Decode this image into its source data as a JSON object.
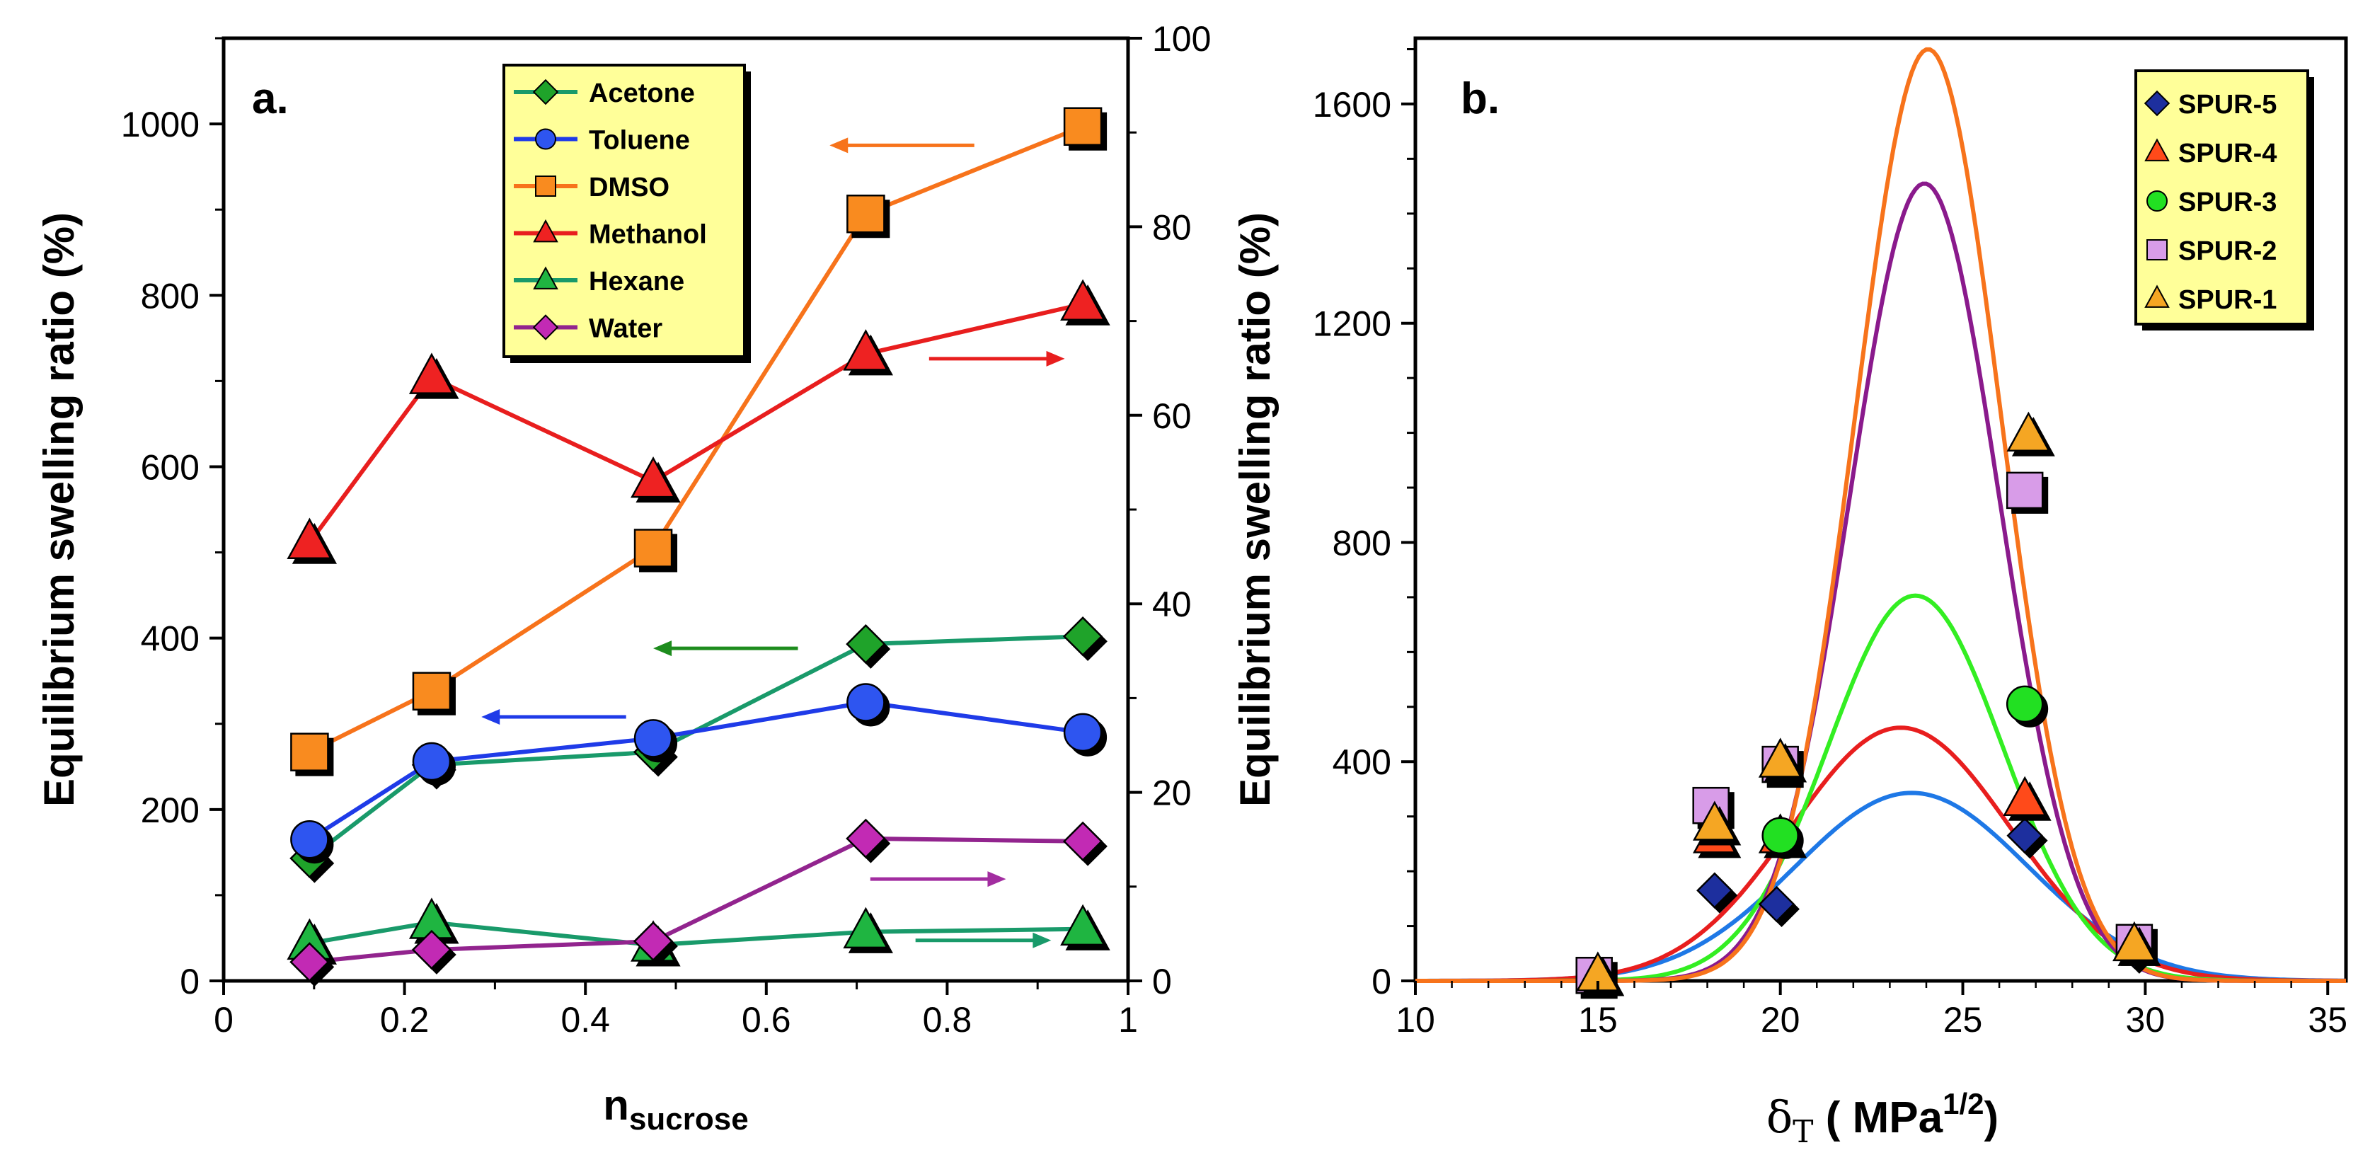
{
  "chart_data": [
    {
      "panel_label": "a.",
      "type": "line",
      "title": "",
      "xlabel_main": "n",
      "xlabel_sub": "sucrose",
      "ylabel": "Equilibrium swelling ratio (%)",
      "xlim": [
        0,
        1
      ],
      "ylim_left": [
        0,
        1100
      ],
      "ylim_right": [
        0,
        100
      ],
      "x_ticks": [
        "0",
        "0.2",
        "0.4",
        "0.6",
        "0.8",
        "1"
      ],
      "y_ticks_left": [
        "0",
        "200",
        "400",
        "600",
        "800",
        "1000"
      ],
      "y_ticks_right": [
        "0",
        "20",
        "40",
        "60",
        "80",
        "100"
      ],
      "x": [
        0.095,
        0.23,
        0.475,
        0.71,
        0.95
      ],
      "legend_position": "top-center",
      "series": [
        {
          "name": "Acetone",
          "axis": "left",
          "color": "#199a6a",
          "marker": "diamond",
          "marker_color": "#1fa32a",
          "values": [
            143,
            252,
            267,
            393,
            402
          ]
        },
        {
          "name": "Toluene",
          "axis": "left",
          "color": "#1f3be8",
          "marker": "circle",
          "marker_color": "#2e55f0",
          "values": [
            165,
            256,
            283,
            325,
            290
          ]
        },
        {
          "name": "DMSO",
          "axis": "left",
          "color": "#f7731b",
          "marker": "square",
          "marker_color": "#f98b1f",
          "values": [
            267,
            338,
            505,
            895,
            997
          ]
        },
        {
          "name": "Methanol",
          "axis": "right",
          "color": "#e81e1e",
          "marker": "triangle",
          "marker_color": "#ee2222",
          "values": [
            46.5,
            64,
            53,
            66.5,
            71.8
          ]
        },
        {
          "name": "Hexane",
          "axis": "right",
          "color": "#199a6a",
          "marker": "triangle",
          "marker_color": "#1fb541",
          "values": [
            4,
            6.2,
            3.8,
            5.2,
            5.5
          ]
        },
        {
          "name": "Water",
          "axis": "right",
          "color": "#92248e",
          "marker": "diamond",
          "marker_color": "#c22ab4",
          "values": [
            2,
            3.3,
            4.2,
            15.1,
            14.8
          ]
        }
      ],
      "arrows": [
        {
          "series": "DMSO",
          "direction": "left",
          "x_from": 0.83,
          "x_to": 0.67,
          "y": 975,
          "axis": "left",
          "color": "#f7731b"
        },
        {
          "series": "Methanol",
          "direction": "right",
          "x_from": 0.78,
          "x_to": 0.93,
          "y": 66,
          "axis": "right",
          "color": "#e81e1e"
        },
        {
          "series": "Acetone",
          "direction": "left",
          "x_from": 0.635,
          "x_to": 0.475,
          "y": 388,
          "axis": "left",
          "color": "#1d8c1d"
        },
        {
          "series": "Toluene",
          "direction": "left",
          "x_from": 0.445,
          "x_to": 0.285,
          "y": 308,
          "axis": "left",
          "color": "#1f3be8"
        },
        {
          "series": "Water",
          "direction": "right",
          "x_from": 0.715,
          "x_to": 0.865,
          "y": 10.8,
          "axis": "right",
          "color": "#a22da0"
        },
        {
          "series": "Hexane",
          "direction": "right",
          "x_from": 0.765,
          "x_to": 0.915,
          "y": 4.3,
          "axis": "right",
          "color": "#199a6a"
        }
      ]
    },
    {
      "panel_label": "b.",
      "type": "scatter",
      "title": "",
      "xlabel_main": "δ",
      "xlabel_sub": "T",
      "xlabel_rest": " ( MPa",
      "xlabel_sup": "1/2",
      "xlabel_end": ")",
      "ylabel": "Equilibrium swelling ratio (%)",
      "xlim": [
        10,
        35.5
      ],
      "ylim": [
        0,
        1720
      ],
      "x_ticks": [
        "10",
        "15",
        "20",
        "25",
        "30",
        "35"
      ],
      "y_ticks": [
        "0",
        "400",
        "800",
        "1200",
        "1600"
      ],
      "legend_position": "top-right",
      "series": [
        {
          "name": "SPUR-5",
          "marker": "diamond",
          "color": "#1d2f9e",
          "fit_color": "#1e78e6",
          "fit_peak": 343,
          "fit_center": 23.6,
          "fit_sigma": 3.2,
          "x": [
            18.2,
            19.9,
            26.7,
            29.7
          ],
          "values": [
            165,
            140,
            265,
            55
          ]
        },
        {
          "name": "SPUR-4",
          "marker": "triangle",
          "color": "#ff4a1a",
          "fit_color": "#e81e1e",
          "fit_peak": 462,
          "fit_center": 23.3,
          "fit_sigma": 3.0,
          "x": [
            18.2,
            20.0,
            26.7
          ],
          "values": [
            262,
            262,
            330
          ]
        },
        {
          "name": "SPUR-3",
          "marker": "circle",
          "color": "#22e022",
          "fit_color": "#33ee22",
          "fit_peak": 703,
          "fit_center": 23.7,
          "fit_sigma": 2.4,
          "x": [
            20.0,
            26.7
          ],
          "values": [
            265,
            505
          ]
        },
        {
          "name": "SPUR-2",
          "marker": "square",
          "color": "#d89ce8",
          "fit_color": "#8a1a8c",
          "fit_peak": 1455,
          "fit_center": 23.95,
          "fit_sigma": 2.05,
          "x": [
            14.9,
            18.1,
            20.0,
            26.7,
            29.7
          ],
          "values": [
            10,
            320,
            395,
            895,
            70
          ]
        },
        {
          "name": "SPUR-1",
          "marker": "triangle",
          "color": "#f5a623",
          "fit_color": "#f7731b",
          "fit_peak": 1700,
          "fit_center": 24.05,
          "fit_sigma": 2.0,
          "x": [
            15.0,
            18.2,
            20.0,
            26.8,
            29.7
          ],
          "values": [
            10,
            285,
            400,
            995,
            65
          ]
        }
      ]
    }
  ]
}
